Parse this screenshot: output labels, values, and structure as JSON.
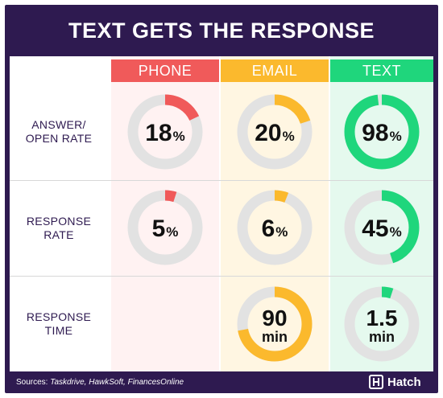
{
  "title": "TEXT GETS THE RESPONSE",
  "colors": {
    "frame": "#2e1a50",
    "phone": "#f05a5a",
    "email": "#fbb92d",
    "text": "#1fd67c",
    "phone_bg": "#fff2f2",
    "email_bg": "#fff6e2",
    "text_bg": "#e5f9ee",
    "track": "#e2e2e2"
  },
  "chart_data": {
    "type": "donut-grid",
    "title": "TEXT GETS THE RESPONSE",
    "columns": [
      "PHONE",
      "EMAIL",
      "TEXT"
    ],
    "rows": [
      {
        "label": [
          "ANSWER/",
          "OPEN RATE"
        ],
        "metric": "answer_open_rate",
        "cells": [
          {
            "value": 18,
            "display": "18",
            "unit": "%"
          },
          {
            "value": 20,
            "display": "20",
            "unit": "%"
          },
          {
            "value": 98,
            "display": "98",
            "unit": "%"
          }
        ]
      },
      {
        "label": [
          "RESPONSE",
          "RATE"
        ],
        "metric": "response_rate",
        "cells": [
          {
            "value": 5,
            "display": "5",
            "unit": "%"
          },
          {
            "value": 6,
            "display": "6",
            "unit": "%"
          },
          {
            "value": 45,
            "display": "45",
            "unit": "%"
          }
        ]
      },
      {
        "label": [
          "RESPONSE",
          "TIME"
        ],
        "metric": "response_time",
        "cells": [
          null,
          {
            "value": 90,
            "display": "90",
            "unit": "min",
            "fill_fraction": 0.72
          },
          {
            "value": 1.5,
            "display": "1.5",
            "unit": "min",
            "fill_fraction": 0.05
          }
        ]
      }
    ]
  },
  "footer": {
    "sources_label": "Sources:",
    "sources": "Taskdrive, HawkSoft, FinancesOnline",
    "brand": "Hatch"
  }
}
